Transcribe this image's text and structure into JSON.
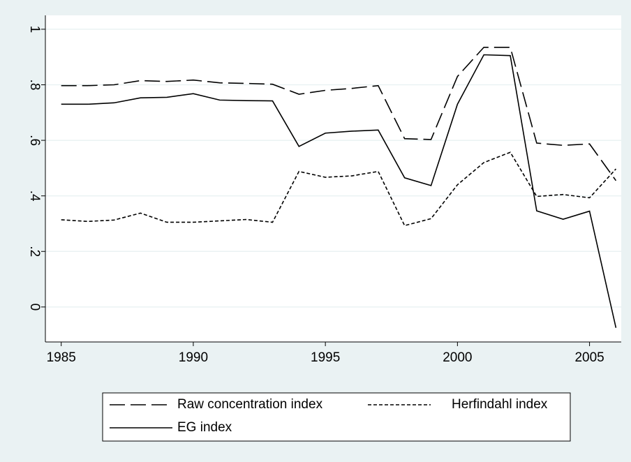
{
  "chart_data": {
    "type": "line",
    "x": [
      1985,
      1986,
      1987,
      1988,
      1989,
      1990,
      1991,
      1992,
      1993,
      1994,
      1995,
      1996,
      1997,
      1998,
      1999,
      2000,
      2001,
      2002,
      2003,
      2004,
      2005,
      2006
    ],
    "series": [
      {
        "name": "Raw concentration index",
        "color": "#000000",
        "dash": "22,8",
        "values": [
          0.797,
          0.797,
          0.8,
          0.815,
          0.812,
          0.817,
          0.807,
          0.805,
          0.802,
          0.766,
          0.78,
          0.787,
          0.797,
          0.606,
          0.603,
          0.83,
          0.935,
          0.935,
          0.59,
          0.582,
          0.587,
          0.455
        ]
      },
      {
        "name": "Herfindahl index",
        "color": "#000000",
        "dash": "5,3",
        "values": [
          0.314,
          0.308,
          0.313,
          0.338,
          0.305,
          0.305,
          0.31,
          0.315,
          0.305,
          0.488,
          0.467,
          0.472,
          0.488,
          0.293,
          0.318,
          0.44,
          0.52,
          0.557,
          0.398,
          0.405,
          0.393,
          0.497
        ]
      },
      {
        "name": "EG index",
        "color": "#000000",
        "dash": "none",
        "values": [
          0.73,
          0.73,
          0.735,
          0.753,
          0.755,
          0.768,
          0.745,
          0.743,
          0.742,
          0.578,
          0.626,
          0.633,
          0.637,
          0.465,
          0.437,
          0.73,
          0.908,
          0.905,
          0.346,
          0.316,
          0.345,
          -0.075
        ]
      }
    ],
    "xlim": [
      1984.4,
      2006.2
    ],
    "xticks": [
      1985,
      1990,
      1995,
      2000,
      2005
    ],
    "ylim": [
      -0.126,
      1.05
    ],
    "yticks": [
      0,
      {
        "value": 0.2,
        "label": ".2"
      },
      {
        "value": 0.4,
        "label": ".4"
      },
      {
        "value": 0.6,
        "label": ".6"
      },
      {
        "value": 0.8,
        "label": ".8"
      },
      1
    ],
    "grid": true,
    "legend": "bottom"
  }
}
